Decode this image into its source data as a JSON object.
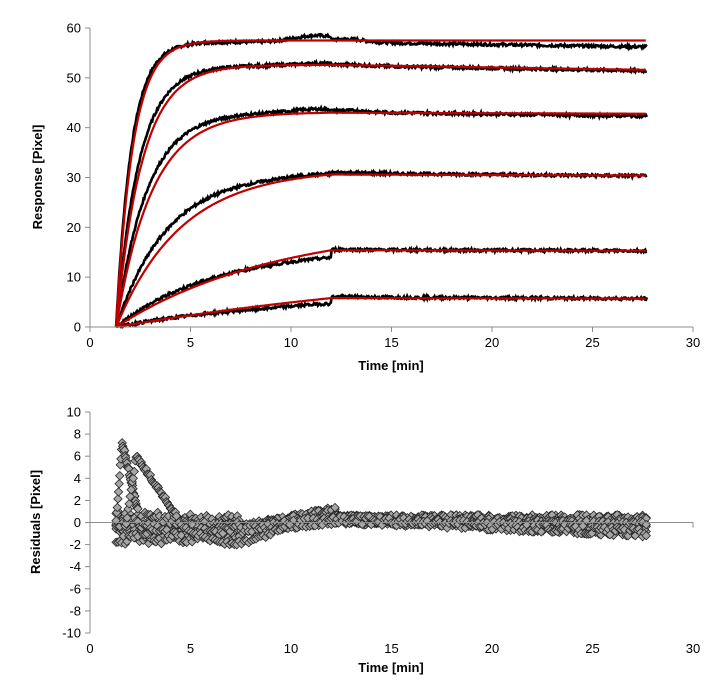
{
  "chart_data": [
    {
      "type": "line",
      "xlabel": "Time [min]",
      "ylabel": "Response [Pixel]",
      "xlim": [
        0,
        30
      ],
      "ylim": [
        0,
        60
      ],
      "xticks": [
        0,
        5,
        10,
        15,
        20,
        25,
        30
      ],
      "yticks": [
        0,
        10,
        20,
        30,
        40,
        50,
        60
      ],
      "grid": false,
      "colors": {
        "measured": "#000000",
        "fit": "#c00000"
      },
      "association_start": 1.3,
      "dissociation_start": 12.0,
      "x_end": 27.7,
      "series": [
        {
          "plateau_measured": 57.2,
          "plateau_fit": 57.5,
          "peak_measured": 58.5,
          "end_measured": 56.2,
          "end_fit": 57.5,
          "fit_rate": 0.85
        },
        {
          "plateau_measured": 52.5,
          "plateau_fit": 52.6,
          "peak_measured": 52.9,
          "end_measured": 51.4,
          "end_fit": 51.6,
          "fit_rate": 0.55
        },
        {
          "plateau_measured": 43.2,
          "plateau_fit": 43.0,
          "peak_measured": 43.8,
          "end_measured": 42.3,
          "end_fit": 42.8,
          "fit_rate": 0.4
        },
        {
          "plateau_measured": 30.9,
          "plateau_fit": 30.6,
          "peak_measured": 31.2,
          "end_measured": 30.3,
          "end_fit": 30.4,
          "fit_rate": 0.22
        },
        {
          "plateau_measured": 15.5,
          "plateau_fit": 15.4,
          "peak_measured": 15.6,
          "end_measured": 15.3,
          "end_fit": 15.3,
          "fit_rate": 0.09
        },
        {
          "plateau_measured": 6.0,
          "plateau_fit": 5.8,
          "peak_measured": 6.2,
          "end_measured": 5.7,
          "end_fit": 5.7,
          "fit_rate": 0.035
        }
      ]
    },
    {
      "type": "scatter",
      "xlabel": "Time [min]",
      "ylabel": "Residuals [Pixel]",
      "xlim": [
        0,
        30
      ],
      "ylim": [
        -10,
        10
      ],
      "xticks": [
        0,
        5,
        10,
        15,
        20,
        25,
        30
      ],
      "yticks": [
        -10,
        -8,
        -6,
        -4,
        -2,
        0,
        2,
        4,
        6,
        8,
        10
      ],
      "grid": false,
      "marker": "diamond",
      "colors": {
        "marker_fill": "#a6a6a6",
        "marker_edge": "#262626"
      },
      "features": {
        "peak": {
          "x": 1.6,
          "y": 7.3
        },
        "hump": {
          "x": 2.3,
          "y": 6.0
        },
        "hump_end": {
          "x": 4.3,
          "y": 0.6
        },
        "dip_min": {
          "x": 7.5,
          "y": -1.9
        },
        "bump_max": {
          "x": 11.3,
          "y": 1.6
        },
        "band_end": {
          "x": 27.7,
          "ymin": -1.5,
          "ymax": 0.3
        }
      }
    }
  ]
}
